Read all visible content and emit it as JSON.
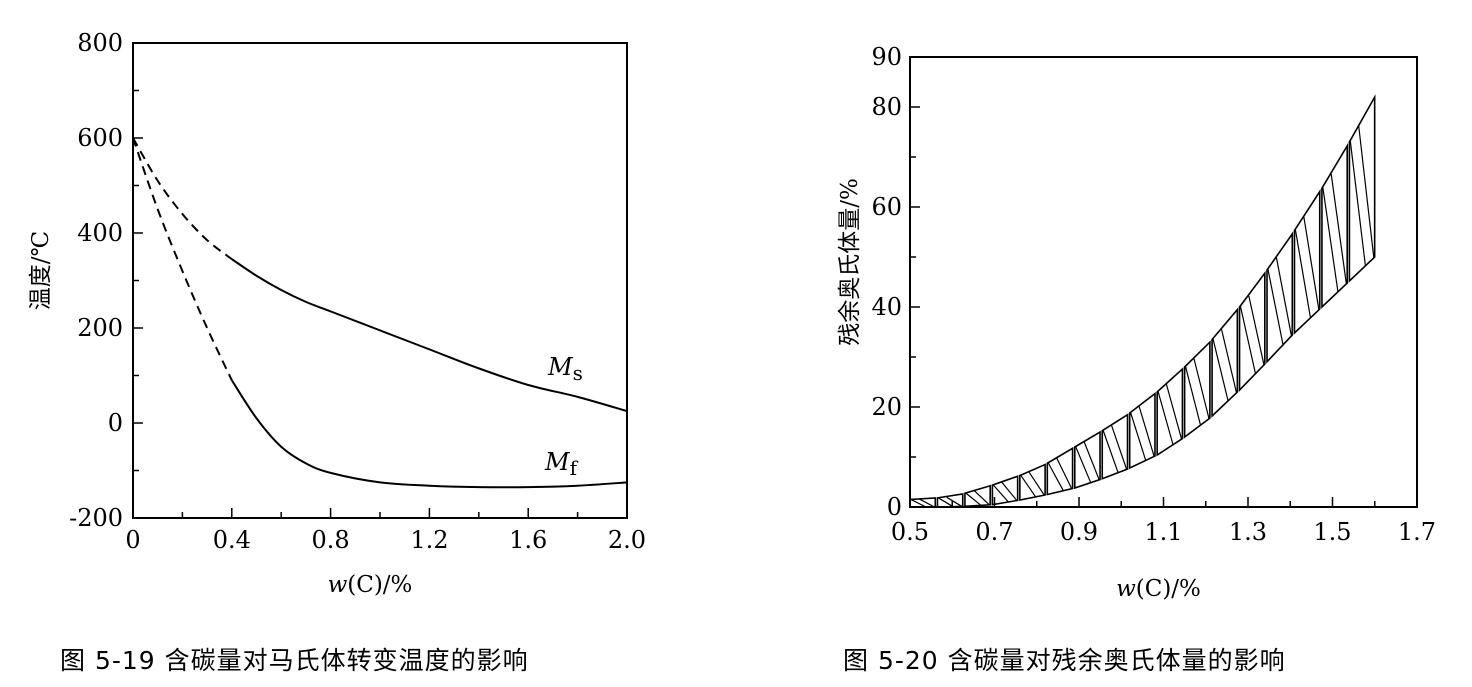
{
  "chart_data": [
    {
      "type": "line",
      "caption": "图 5-19   含碳量对马氏体转变温度的影响",
      "xlabel_var": "w",
      "xlabel_rest": "(C)/%",
      "ylabel": "温度/℃",
      "xlim": [
        0,
        2.0
      ],
      "ylim": [
        -200,
        800
      ],
      "xticks": [
        0,
        0.4,
        0.8,
        1.2,
        1.6,
        2.0
      ],
      "xtick_labels": [
        "0",
        "0.4",
        "0.8",
        "1.2",
        "1.6",
        "2.0"
      ],
      "yticks": [
        -200,
        0,
        200,
        400,
        600,
        800
      ],
      "ytick_labels": [
        "-200",
        "0",
        "200",
        "400",
        "600",
        "800"
      ],
      "series": [
        {
          "name_main": "M",
          "name_sub": "s",
          "x": [
            0,
            0.1,
            0.2,
            0.3,
            0.4,
            0.5,
            0.6,
            0.7,
            0.8,
            1.0,
            1.2,
            1.4,
            1.6,
            1.8,
            2.0
          ],
          "y": [
            600,
            510,
            440,
            385,
            345,
            310,
            280,
            255,
            235,
            195,
            155,
            115,
            80,
            55,
            25
          ],
          "dashed_until": 0.4
        },
        {
          "name_main": "M",
          "name_sub": "f",
          "x": [
            0,
            0.1,
            0.2,
            0.3,
            0.4,
            0.5,
            0.6,
            0.7,
            0.8,
            1.0,
            1.2,
            1.4,
            1.6,
            1.8,
            2.0
          ],
          "y": [
            600,
            450,
            320,
            200,
            90,
            10,
            -50,
            -85,
            -105,
            -125,
            -132,
            -135,
            -135,
            -132,
            -125
          ],
          "dashed_until": 0.4
        }
      ]
    },
    {
      "type": "area",
      "caption": "图 5-20   含碳量对残余奥氏体量的影响",
      "xlabel_var": "w",
      "xlabel_rest": "(C)/%",
      "ylabel": "残余奥氏体量/%",
      "xlim": [
        0.5,
        1.7
      ],
      "ylim": [
        0,
        90
      ],
      "xticks": [
        0.5,
        0.7,
        0.9,
        1.1,
        1.3,
        1.5,
        1.7
      ],
      "xtick_labels": [
        "0.5",
        "0.7",
        "0.9",
        "1.1",
        "1.3",
        "1.5",
        "1.7"
      ],
      "yticks": [
        0,
        20,
        40,
        60,
        80,
        90
      ],
      "ytick_labels": [
        "0",
        "20",
        "40",
        "60",
        "80",
        "90"
      ],
      "band": {
        "x": [
          0.5,
          0.6,
          0.7,
          0.8,
          0.9,
          1.0,
          1.1,
          1.2,
          1.3,
          1.4,
          1.5,
          1.6
        ],
        "upper": [
          1.5,
          2.0,
          4.5,
          7.5,
          12.5,
          17.5,
          24.0,
          32.0,
          42.0,
          54.0,
          67.0,
          82.0
        ],
        "lower": [
          0.0,
          0.0,
          0.5,
          2.0,
          4.0,
          7.0,
          11.0,
          17.0,
          25.0,
          34.0,
          42.0,
          50.0
        ]
      }
    }
  ]
}
